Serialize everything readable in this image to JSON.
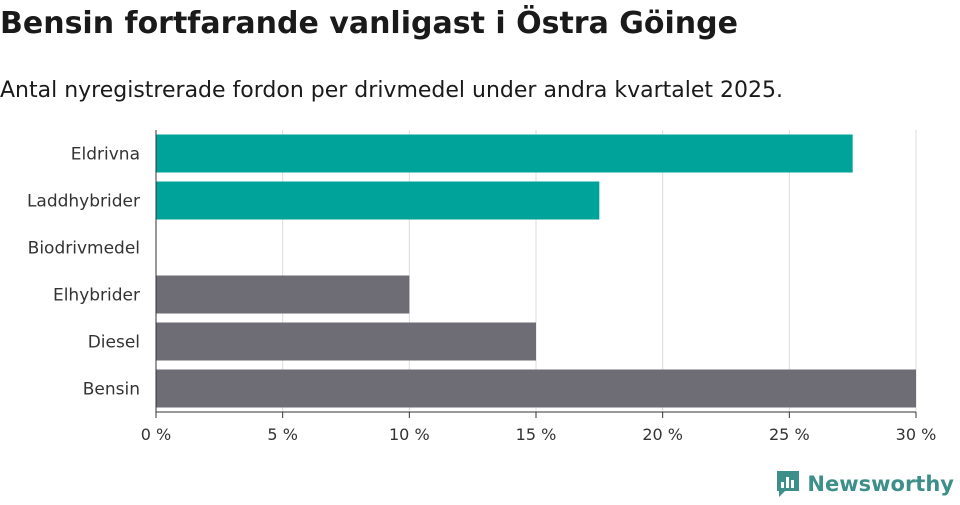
{
  "title": "Bensin fortfarande vanligast i Östra Göinge",
  "subtitle": "Antal nyregistrerade fordon per drivmedel under andra kvartalet 2025.",
  "brand": {
    "name": "Newsworthy",
    "icon": "newsworthy-logo-icon",
    "color": "#3d8f8a"
  },
  "chart_data": {
    "type": "bar",
    "orientation": "horizontal",
    "categories": [
      "Eldrivna",
      "Laddhybrider",
      "Biodrivmedel",
      "Elhybrider",
      "Diesel",
      "Bensin"
    ],
    "values": [
      27.5,
      17.5,
      0,
      10,
      15,
      30
    ],
    "colors": [
      "#00a39a",
      "#00a39a",
      "#00a39a",
      "#6e6d75",
      "#6e6d75",
      "#6e6d75"
    ],
    "xlim": [
      0,
      30
    ],
    "xticks": [
      0,
      5,
      10,
      15,
      20,
      25,
      30
    ],
    "xtick_labels": [
      "0 %",
      "5 %",
      "10 %",
      "15 %",
      "20 %",
      "25 %",
      "30 %"
    ],
    "grid": true
  }
}
